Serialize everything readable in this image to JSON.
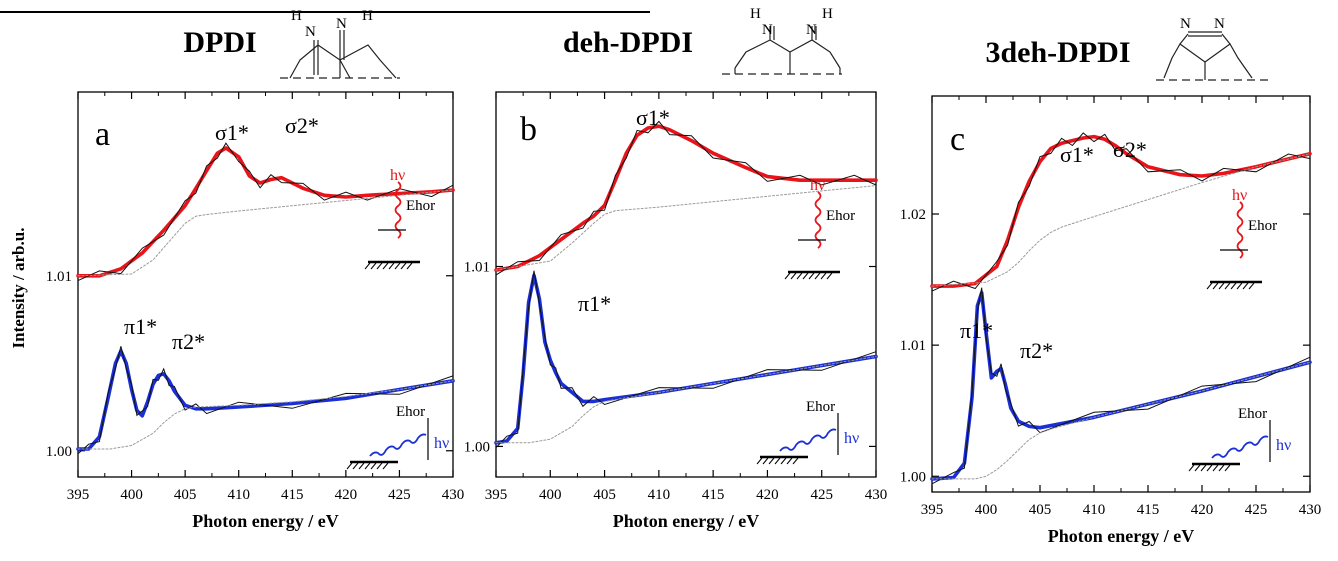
{
  "figure": {
    "ylabel": "Intensity / arb.u.",
    "colors": {
      "upper": "#e8141a",
      "lower": "#1a2fd6",
      "fit": "#111111",
      "background": "#9a9a9a"
    }
  },
  "panels": [
    {
      "id": "a",
      "title": "DPDI",
      "letter": "a",
      "molecule": "DPDI",
      "molecule_labels": {
        "left_top": "H",
        "left_n": "N",
        "right_n": "N",
        "right_h": "H"
      },
      "upper_peaks": [
        "σ1*",
        "σ2*"
      ],
      "lower_peaks": [
        "π1*",
        "π2*"
      ],
      "ytick_labels": [
        "1.00",
        "1.01"
      ],
      "xlabel": "Photon energy / eV",
      "xtick_labels": [
        "395",
        "400",
        "405",
        "410",
        "415",
        "420",
        "425",
        "430"
      ]
    },
    {
      "id": "b",
      "title": "deh-DPDI",
      "letter": "b",
      "molecule": "deh-DPDI",
      "molecule_labels": {
        "left_top": "H",
        "left_n": "N",
        "right_n": "N",
        "right_h": "H"
      },
      "upper_peaks": [
        "σ1*"
      ],
      "lower_peaks": [
        "π1*"
      ],
      "ytick_labels": [
        "1.00",
        "1.01"
      ],
      "xlabel": "Photon energy / eV",
      "xtick_labels": [
        "395",
        "400",
        "405",
        "410",
        "415",
        "420",
        "425",
        "430"
      ]
    },
    {
      "id": "c",
      "title": "3deh-DPDI",
      "letter": "c",
      "molecule": "3deh-DPDI",
      "molecule_labels": {
        "n1": "N",
        "n2": "N"
      },
      "upper_peaks": [
        "σ1*",
        "σ2*"
      ],
      "lower_peaks": [
        "π1*",
        "π2*"
      ],
      "ytick_labels": [
        "1.00",
        "1.01",
        "1.02"
      ],
      "xlabel": "Photon energy / eV",
      "xtick_labels": [
        "395",
        "400",
        "405",
        "410",
        "415",
        "420",
        "425",
        "430"
      ]
    }
  ],
  "geometry_labels": {
    "hv": "hν",
    "e_hor": "Ehor"
  },
  "chart_data": [
    {
      "type": "line",
      "panel": "a",
      "xlim": [
        395,
        430
      ],
      "ylim": [
        0.9985,
        1.0205
      ],
      "yticks": [
        1.0,
        1.01
      ],
      "series": [
        {
          "color": "#e8141a",
          "x": [
            395,
            397,
            399,
            401,
            403,
            405,
            406,
            407,
            408,
            408.8,
            410,
            411,
            412,
            413,
            414,
            416,
            418,
            420,
            422,
            425,
            428,
            430
          ],
          "y": [
            1.01,
            1.01,
            1.0104,
            1.0113,
            1.0126,
            1.014,
            1.015,
            1.016,
            1.017,
            1.0173,
            1.0168,
            1.0157,
            1.0153,
            1.0155,
            1.0156,
            1.015,
            1.0146,
            1.0145,
            1.0146,
            1.0147,
            1.0148,
            1.0149
          ]
        },
        {
          "color": "#1a2fd6",
          "x": [
            395,
            396,
            397,
            397.8,
            398.5,
            399,
            399.5,
            400,
            400.5,
            401,
            401.5,
            402,
            402.5,
            403,
            403.5,
            404,
            405,
            406,
            407,
            410,
            415,
            420,
            425,
            430
          ],
          "y": [
            1.0001,
            1.0001,
            1.0008,
            1.003,
            1.005,
            1.0057,
            1.005,
            1.0035,
            1.0023,
            1.002,
            1.0028,
            1.0038,
            1.0043,
            1.0044,
            1.004,
            1.0034,
            1.0026,
            1.0024,
            1.0024,
            1.0025,
            1.0027,
            1.003,
            1.0035,
            1.004
          ]
        },
        {
          "color": "#9a9a9a",
          "dashed": true,
          "x": [
            395,
            400,
            402,
            404,
            405,
            406,
            407,
            410,
            415,
            420,
            425,
            430
          ],
          "y": [
            1.01,
            1.0101,
            1.0109,
            1.0123,
            1.013,
            1.0134,
            1.0135,
            1.0137,
            1.014,
            1.0143,
            1.0146,
            1.0149
          ]
        },
        {
          "color": "#9a9a9a",
          "dashed": true,
          "x": [
            395,
            398,
            400,
            402,
            403,
            404,
            405,
            406,
            410,
            415,
            420,
            425,
            430
          ],
          "y": [
            1.0001,
            1.0001,
            1.0003,
            1.001,
            1.0016,
            1.0021,
            1.0024,
            1.0025,
            1.0026,
            1.0028,
            1.0031,
            1.0035,
            1.004
          ]
        }
      ]
    },
    {
      "type": "line",
      "panel": "b",
      "xlim": [
        395,
        430
      ],
      "ylim": [
        0.9983,
        1.0197
      ],
      "yticks": [
        1.0,
        1.01
      ],
      "series": [
        {
          "color": "#e8141a",
          "x": [
            395,
            397,
            399,
            401,
            403,
            404,
            405,
            406,
            407,
            408,
            409,
            410,
            411,
            413,
            415,
            418,
            420,
            423,
            425,
            428,
            430
          ],
          "y": [
            1.0098,
            1.01,
            1.0106,
            1.0115,
            1.0124,
            1.0128,
            1.0134,
            1.0148,
            1.0163,
            1.0173,
            1.0177,
            1.0178,
            1.0176,
            1.017,
            1.0163,
            1.0155,
            1.015,
            1.0148,
            1.0148,
            1.0148,
            1.0148
          ]
        },
        {
          "color": "#1a2fd6",
          "x": [
            395,
            396,
            397,
            397.5,
            398,
            398.5,
            399,
            399.5,
            400,
            400.5,
            401,
            402,
            403,
            404,
            405,
            410,
            415,
            420,
            425,
            430
          ],
          "y": [
            1.0002,
            1.0003,
            1.001,
            1.004,
            1.008,
            1.0095,
            1.0082,
            1.0058,
            1.0048,
            1.0041,
            1.0035,
            1.003,
            1.0025,
            1.0025,
            1.0026,
            1.003,
            1.0035,
            1.004,
            1.0045,
            1.005
          ]
        },
        {
          "color": "#9a9a9a",
          "dashed": true,
          "x": [
            395,
            400,
            402,
            404,
            405,
            406,
            410,
            415,
            420,
            425,
            430
          ],
          "y": [
            1.0098,
            1.0103,
            1.0113,
            1.0124,
            1.0129,
            1.0131,
            1.0133,
            1.0136,
            1.0139,
            1.0142,
            1.0145
          ]
        },
        {
          "color": "#9a9a9a",
          "dashed": true,
          "x": [
            395,
            398,
            400,
            402,
            403,
            404,
            405,
            406,
            410,
            415,
            420,
            425,
            430
          ],
          "y": [
            1.0002,
            1.0002,
            1.0004,
            1.0011,
            1.0017,
            1.0022,
            1.0025,
            1.0026,
            1.003,
            1.0035,
            1.004,
            1.0045,
            1.005
          ]
        }
      ]
    },
    {
      "type": "line",
      "panel": "c",
      "xlim": [
        395,
        430
      ],
      "ylim": [
        0.9988,
        1.029
      ],
      "yticks": [
        1.0,
        1.01,
        1.02
      ],
      "series": [
        {
          "color": "#e8141a",
          "x": [
            395,
            397,
            399,
            401,
            402,
            403,
            404,
            405,
            406,
            407,
            408,
            409,
            410,
            411,
            412,
            413,
            415,
            418,
            420,
            422,
            425,
            428,
            430
          ],
          "y": [
            1.0145,
            1.0145,
            1.0147,
            1.016,
            1.018,
            1.0205,
            1.0225,
            1.024,
            1.025,
            1.0254,
            1.0256,
            1.0258,
            1.0259,
            1.0257,
            1.0252,
            1.0246,
            1.0236,
            1.023,
            1.0229,
            1.0231,
            1.0236,
            1.0242,
            1.0246
          ]
        },
        {
          "color": "#1a2fd6",
          "x": [
            395,
            397,
            398,
            398.7,
            399.2,
            399.6,
            400,
            400.5,
            401,
            401.4,
            401.8,
            402.3,
            403,
            404,
            405,
            410,
            415,
            420,
            425,
            430
          ],
          "y": [
            0.9998,
            0.9999,
            1.001,
            1.006,
            1.013,
            1.014,
            1.011,
            1.0075,
            1.008,
            1.0082,
            1.007,
            1.0052,
            1.0042,
            1.0038,
            1.0037,
            1.0045,
            1.0055,
            1.0065,
            1.0076,
            1.0087
          ]
        },
        {
          "color": "#9a9a9a",
          "dashed": true,
          "x": [
            395,
            400,
            402,
            403,
            404,
            405,
            406,
            407,
            410,
            415,
            420,
            425,
            430
          ],
          "y": [
            1.0145,
            1.0148,
            1.0156,
            1.0163,
            1.0172,
            1.018,
            1.0186,
            1.019,
            1.0198,
            1.0211,
            1.0224,
            1.0236,
            1.0246
          ]
        },
        {
          "color": "#9a9a9a",
          "dashed": true,
          "x": [
            395,
            399,
            400,
            401,
            402,
            403,
            404,
            405,
            406,
            410,
            415,
            420,
            425,
            430
          ],
          "y": [
            0.9998,
            0.9998,
            1.0,
            1.0005,
            1.0012,
            1.002,
            1.0028,
            1.0033,
            1.0036,
            1.0045,
            1.0055,
            1.0065,
            1.0076,
            1.0087
          ]
        }
      ]
    }
  ]
}
